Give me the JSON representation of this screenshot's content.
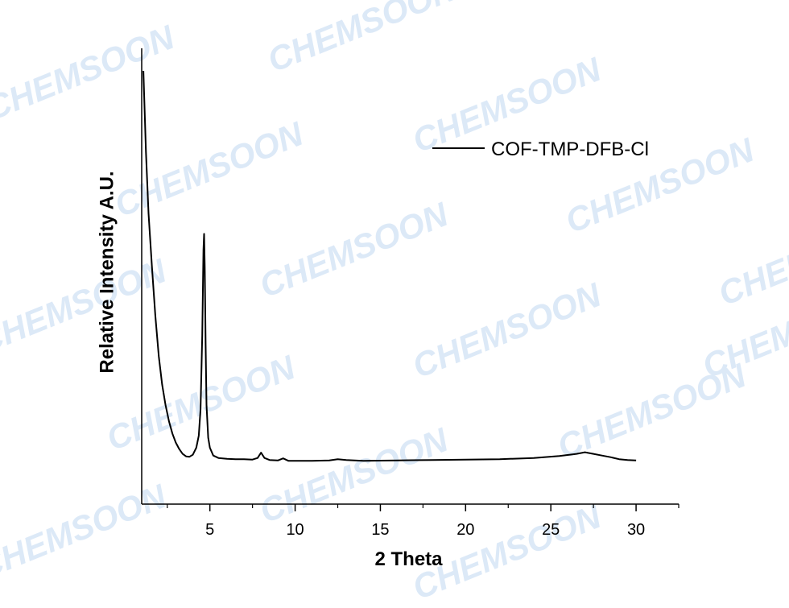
{
  "watermark": {
    "text": "CHEMSOON",
    "color": "#dce9f7"
  },
  "chart_data": {
    "type": "line",
    "title": "",
    "xlabel": "2 Theta",
    "ylabel": "Relative Intensity A.U.",
    "xlim": [
      1,
      32.5
    ],
    "ylim": [
      0,
      100
    ],
    "y_tick_labels": false,
    "x_ticks": [
      5,
      10,
      15,
      20,
      25,
      30
    ],
    "x_tick_labels": [
      "5",
      "10",
      "15",
      "20",
      "25",
      "30"
    ],
    "grid": false,
    "legend_position": "top-right",
    "series": [
      {
        "name": "COF-TMP-DFB-Cl",
        "color": "#000000",
        "x": [
          1.1,
          1.25,
          1.4,
          1.6,
          1.8,
          2.0,
          2.2,
          2.4,
          2.6,
          2.8,
          3.0,
          3.2,
          3.4,
          3.6,
          3.8,
          4.0,
          4.2,
          4.35,
          4.45,
          4.55,
          4.62,
          4.66,
          4.7,
          4.75,
          4.8,
          4.9,
          5.0,
          5.2,
          5.5,
          6.0,
          6.5,
          7.0,
          7.5,
          7.8,
          8.0,
          8.2,
          8.5,
          9.0,
          9.3,
          9.6,
          10.0,
          11.0,
          12.0,
          12.5,
          13.0,
          14.0,
          16.0,
          18.0,
          20.0,
          22.0,
          24.0,
          25.5,
          26.5,
          27.0,
          27.5,
          28.0,
          28.5,
          29.0,
          29.5,
          30.0
        ],
        "y": [
          100,
          80,
          65,
          52,
          40,
          30,
          23,
          18,
          14,
          11,
          8.8,
          7.2,
          6.0,
          5.4,
          5.3,
          5.8,
          7.5,
          10.5,
          17,
          35,
          56,
          60,
          52,
          33,
          18,
          10,
          7.5,
          5.6,
          5.0,
          4.8,
          4.7,
          4.7,
          4.6,
          5.0,
          6.3,
          5.0,
          4.5,
          4.4,
          4.9,
          4.3,
          4.3,
          4.3,
          4.4,
          4.7,
          4.5,
          4.3,
          4.4,
          4.5,
          4.6,
          4.7,
          5.0,
          5.5,
          6.0,
          6.4,
          6.0,
          5.6,
          5.2,
          4.7,
          4.5,
          4.4
        ]
      }
    ]
  }
}
